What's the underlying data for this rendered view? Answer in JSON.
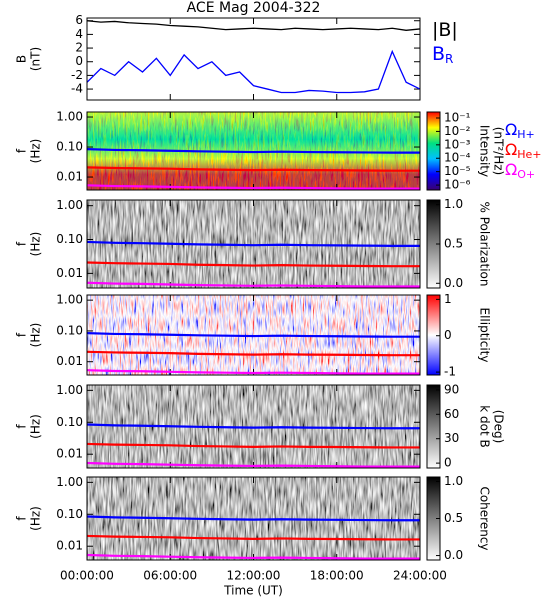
{
  "chart_data": [
    {
      "type": "line",
      "title": "ACE Mag 2004-322",
      "ylabel": [
        "B",
        "(nT)"
      ],
      "x": [
        0,
        1,
        2,
        3,
        4,
        5,
        6,
        7,
        8,
        9,
        10,
        11,
        12,
        13,
        14,
        15,
        16,
        17,
        18,
        19,
        20,
        21,
        22,
        23,
        24
      ],
      "xlim": [
        0,
        24
      ],
      "ylim": [
        -5.6,
        6.4
      ],
      "yticks": [
        -4,
        -2,
        0,
        2,
        4,
        6
      ],
      "series": [
        {
          "name": "|B|",
          "color": "#000000",
          "values": [
            6,
            5.8,
            5.9,
            5.7,
            5.6,
            5.5,
            5.3,
            5.2,
            5.1,
            4.9,
            4.7,
            4.8,
            4.9,
            4.8,
            4.7,
            4.9,
            4.8,
            4.7,
            4.8,
            4.9,
            4.8,
            4.7,
            4.9,
            4.6,
            4.8
          ]
        },
        {
          "name": "B",
          "name_sub": "R",
          "color": "#0000ff",
          "values": [
            -3,
            -1,
            -2,
            0,
            -1.5,
            0.5,
            -2,
            1,
            -1,
            0,
            -2,
            -1.5,
            -3.5,
            -4,
            -4.5,
            -4.5,
            -4.2,
            -4.3,
            -4.5,
            -4.5,
            -4.4,
            -4,
            1.5,
            -3,
            -4
          ]
        }
      ]
    },
    {
      "type": "spectrogram",
      "ylabel": [
        "f",
        "(Hz)"
      ],
      "ylog": true,
      "x": [
        0,
        2,
        4,
        6,
        8,
        10,
        12,
        14,
        16,
        18,
        20,
        22,
        24
      ],
      "xlim": [
        0,
        24
      ],
      "ylim": [
        0.0037,
        1.47
      ],
      "yticks": [
        {
          "value": 0.01,
          "label": "0.01"
        },
        {
          "value": 0.1,
          "label": "0.10"
        },
        {
          "value": 1,
          "label": "1.00"
        }
      ],
      "colorbar": {
        "label": [
          "Intensity",
          "(nT²/Hz)"
        ],
        "log": true,
        "lim": [
          4.3e-07,
          0.28
        ],
        "colors": [
          "#3a0070",
          "#0000ff",
          "#00c0ff",
          "#00e080",
          "#ffff00",
          "#ff0000"
        ],
        "ticks": [
          {
            "value": 1e-06,
            "label": "10⁻⁶"
          },
          {
            "value": 1e-05,
            "label": "10⁻⁵"
          },
          {
            "value": 0.0001,
            "label": "10⁻⁴"
          },
          {
            "value": 0.001,
            "label": "10⁻³"
          },
          {
            "value": 0.01,
            "label": "10⁻²"
          },
          {
            "value": 0.1,
            "label": "10⁻¹"
          }
        ]
      },
      "series": [
        {
          "name": "Ω",
          "name_sub": "H+",
          "color": "#0000ff",
          "values": [
            0.085,
            0.08,
            0.078,
            0.075,
            0.072,
            0.07,
            0.068,
            0.07,
            0.068,
            0.067,
            0.066,
            0.065,
            0.065
          ]
        },
        {
          "name": "Ω",
          "name_sub": "He+",
          "color": "#ff0000",
          "values": [
            0.021,
            0.02,
            0.0195,
            0.019,
            0.018,
            0.0175,
            0.017,
            0.0175,
            0.017,
            0.0168,
            0.0165,
            0.0163,
            0.0163
          ]
        },
        {
          "name": "Ω",
          "name_sub": "O+",
          "color": "#ff00ff",
          "values": [
            0.0053,
            0.005,
            0.0049,
            0.0047,
            0.0045,
            0.0044,
            0.0043,
            0.0044,
            0.0043,
            0.0042,
            0.0041,
            0.0041,
            0.0041
          ]
        }
      ]
    },
    {
      "type": "spectrogram",
      "ylabel": [
        "f",
        "(Hz)"
      ],
      "ylog": true,
      "x": [
        0,
        2,
        4,
        6,
        8,
        10,
        12,
        14,
        16,
        18,
        20,
        22,
        24
      ],
      "xlim": [
        0,
        24
      ],
      "ylim": [
        0.0037,
        1.47
      ],
      "yticks": [
        {
          "value": 0.01,
          "label": "0.01"
        },
        {
          "value": 0.1,
          "label": "0.10"
        },
        {
          "value": 1,
          "label": "1.00"
        }
      ],
      "colorbar": {
        "label": [
          "% Polarization"
        ],
        "lim": [
          -0.06,
          1.06
        ],
        "colors": [
          "#ffffff",
          "#000000"
        ],
        "ticks": [
          {
            "value": 0,
            "label": "0.0"
          },
          {
            "value": 0.5,
            "label": "0.5"
          },
          {
            "value": 1,
            "label": "1.0"
          }
        ]
      },
      "series": [
        {
          "color": "#0000ff",
          "values": [
            0.085,
            0.08,
            0.078,
            0.075,
            0.072,
            0.07,
            0.068,
            0.07,
            0.068,
            0.067,
            0.066,
            0.065,
            0.065
          ]
        },
        {
          "color": "#ff0000",
          "values": [
            0.021,
            0.02,
            0.0195,
            0.019,
            0.018,
            0.0175,
            0.017,
            0.0175,
            0.017,
            0.0168,
            0.0165,
            0.0163,
            0.0163
          ]
        },
        {
          "color": "#ff00ff",
          "values": [
            0.0053,
            0.005,
            0.0049,
            0.0047,
            0.0045,
            0.0044,
            0.0043,
            0.0044,
            0.0043,
            0.0042,
            0.0041,
            0.0041,
            0.0041
          ]
        }
      ]
    },
    {
      "type": "spectrogram",
      "ylabel": [
        "f",
        "(Hz)"
      ],
      "ylog": true,
      "x": [
        0,
        2,
        4,
        6,
        8,
        10,
        12,
        14,
        16,
        18,
        20,
        22,
        24
      ],
      "xlim": [
        0,
        24
      ],
      "ylim": [
        0.0037,
        1.47
      ],
      "yticks": [
        {
          "value": 0.01,
          "label": "0.01"
        },
        {
          "value": 0.1,
          "label": "0.10"
        },
        {
          "value": 1,
          "label": "1.00"
        }
      ],
      "colorbar": {
        "label": [
          "Ellipticity"
        ],
        "lim": [
          -1.08,
          1.12
        ],
        "colors": [
          "#0000ff",
          "#ffffff",
          "#ff0000"
        ],
        "ticks": [
          -1,
          0,
          1
        ]
      },
      "series": [
        {
          "color": "#0000ff",
          "values": [
            0.085,
            0.08,
            0.078,
            0.075,
            0.072,
            0.07,
            0.068,
            0.07,
            0.068,
            0.067,
            0.066,
            0.065,
            0.065
          ]
        },
        {
          "color": "#ff0000",
          "values": [
            0.021,
            0.02,
            0.0195,
            0.019,
            0.018,
            0.0175,
            0.017,
            0.0175,
            0.017,
            0.0168,
            0.0165,
            0.0163,
            0.0163
          ]
        },
        {
          "color": "#ff00ff",
          "values": [
            0.0053,
            0.005,
            0.0049,
            0.0047,
            0.0045,
            0.0044,
            0.0043,
            0.0044,
            0.0043,
            0.0042,
            0.0041,
            0.0041,
            0.0041
          ]
        }
      ]
    },
    {
      "type": "spectrogram",
      "ylabel": [
        "f",
        "(Hz)"
      ],
      "ylog": true,
      "x": [
        0,
        2,
        4,
        6,
        8,
        10,
        12,
        14,
        16,
        18,
        20,
        22,
        24
      ],
      "xlim": [
        0,
        24
      ],
      "ylim": [
        0.0037,
        1.47
      ],
      "yticks": [
        {
          "value": 0.01,
          "label": "0.01"
        },
        {
          "value": 0.1,
          "label": "0.10"
        },
        {
          "value": 1,
          "label": "1.00"
        }
      ],
      "colorbar": {
        "label": [
          "k dot B",
          "(Deg)"
        ],
        "lim": [
          -6,
          96
        ],
        "colors": [
          "#ffffff",
          "#000000"
        ],
        "ticks": [
          0,
          30,
          60,
          90
        ]
      },
      "series": [
        {
          "color": "#0000ff",
          "values": [
            0.085,
            0.08,
            0.078,
            0.075,
            0.072,
            0.07,
            0.068,
            0.07,
            0.068,
            0.067,
            0.066,
            0.065,
            0.065
          ]
        },
        {
          "color": "#ff0000",
          "values": [
            0.021,
            0.02,
            0.0195,
            0.019,
            0.018,
            0.0175,
            0.017,
            0.0175,
            0.017,
            0.0168,
            0.0165,
            0.0163,
            0.0163
          ]
        },
        {
          "color": "#ff00ff",
          "values": [
            0.0053,
            0.005,
            0.0049,
            0.0047,
            0.0045,
            0.0044,
            0.0043,
            0.0044,
            0.0043,
            0.0042,
            0.0041,
            0.0041,
            0.0041
          ]
        }
      ]
    },
    {
      "type": "spectrogram",
      "ylabel": [
        "f",
        "(Hz)"
      ],
      "ylog": true,
      "xlabel": "Time (UT)",
      "x": [
        0,
        2,
        4,
        6,
        8,
        10,
        12,
        14,
        16,
        18,
        20,
        22,
        24
      ],
      "xlim": [
        0,
        24
      ],
      "ylim": [
        0.0037,
        1.47
      ],
      "xticks": [
        {
          "value": 0,
          "label": "00:00:00"
        },
        {
          "value": 6,
          "label": "06:00:00"
        },
        {
          "value": 12,
          "label": "12:00:00"
        },
        {
          "value": 18,
          "label": "18:00:00"
        },
        {
          "value": 24,
          "label": "24:00:00"
        }
      ],
      "yticks": [
        {
          "value": 0.01,
          "label": "0.01"
        },
        {
          "value": 0.1,
          "label": "0.10"
        },
        {
          "value": 1,
          "label": "1.00"
        }
      ],
      "colorbar": {
        "label": [
          "Coherency"
        ],
        "lim": [
          -0.06,
          1.06
        ],
        "colors": [
          "#ffffff",
          "#000000"
        ],
        "ticks": [
          {
            "value": 0,
            "label": "0.0"
          },
          {
            "value": 0.5,
            "label": "0.5"
          },
          {
            "value": 1,
            "label": "1.0"
          }
        ]
      },
      "series": [
        {
          "color": "#0000ff",
          "values": [
            0.085,
            0.08,
            0.078,
            0.075,
            0.072,
            0.07,
            0.068,
            0.07,
            0.068,
            0.067,
            0.066,
            0.065,
            0.065
          ]
        },
        {
          "color": "#ff0000",
          "values": [
            0.021,
            0.02,
            0.0195,
            0.019,
            0.018,
            0.0175,
            0.017,
            0.0175,
            0.017,
            0.0168,
            0.0165,
            0.0163,
            0.0163
          ]
        },
        {
          "color": "#ff00ff",
          "values": [
            0.0053,
            0.005,
            0.0049,
            0.0047,
            0.0045,
            0.0044,
            0.0043,
            0.0044,
            0.0043,
            0.0042,
            0.0041,
            0.0041,
            0.0041
          ]
        }
      ]
    }
  ]
}
